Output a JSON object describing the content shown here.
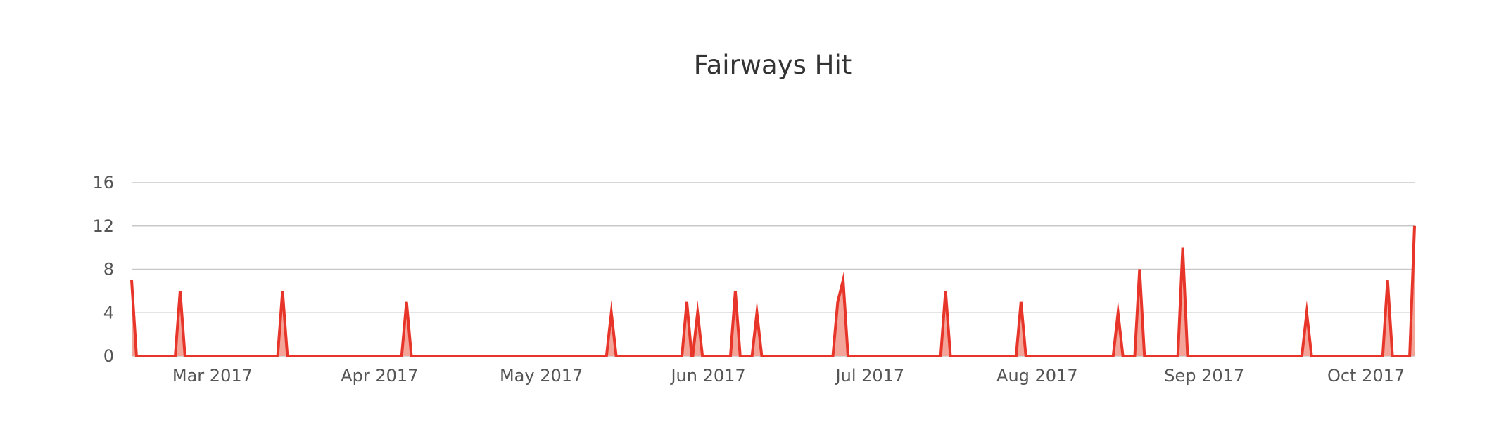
{
  "chart_data": {
    "type": "area",
    "title": "Fairways Hit",
    "xlabel": "",
    "ylabel": "",
    "ylim": [
      0,
      16
    ],
    "yticks": [
      0,
      4,
      8,
      12,
      16
    ],
    "xlim": [
      "2017-02-14",
      "2017-10-10"
    ],
    "xtick_labels": [
      {
        "date": "2017-03-01",
        "label": "Mar 2017"
      },
      {
        "date": "2017-04-01",
        "label": "Apr 2017"
      },
      {
        "date": "2017-05-01",
        "label": "May 2017"
      },
      {
        "date": "2017-06-01",
        "label": "Jun 2017"
      },
      {
        "date": "2017-07-01",
        "label": "Jul 2017"
      },
      {
        "date": "2017-08-01",
        "label": "Aug 2017"
      },
      {
        "date": "2017-09-01",
        "label": "Sep 2017"
      },
      {
        "date": "2017-10-01",
        "label": "Oct 2017"
      }
    ],
    "grid": true,
    "legend": "none",
    "line_color": "#e8352a",
    "fill_color": "#f4a59a",
    "points": [
      {
        "x": "2017-02-14",
        "y": 7
      },
      {
        "x": "2017-02-23",
        "y": 6
      },
      {
        "x": "2017-03-14",
        "y": 6
      },
      {
        "x": "2017-04-06",
        "y": 5
      },
      {
        "x": "2017-05-14",
        "y": 4
      },
      {
        "x": "2017-05-28",
        "y": 5
      },
      {
        "x": "2017-05-30",
        "y": 4
      },
      {
        "x": "2017-06-06",
        "y": 6
      },
      {
        "x": "2017-06-10",
        "y": 4
      },
      {
        "x": "2017-06-25",
        "y": 5
      },
      {
        "x": "2017-06-26",
        "y": 7
      },
      {
        "x": "2017-07-15",
        "y": 6
      },
      {
        "x": "2017-07-29",
        "y": 5
      },
      {
        "x": "2017-08-16",
        "y": 4
      },
      {
        "x": "2017-08-20",
        "y": 8
      },
      {
        "x": "2017-08-28",
        "y": 10
      },
      {
        "x": "2017-09-20",
        "y": 4
      },
      {
        "x": "2017-10-05",
        "y": 7
      },
      {
        "x": "2017-10-10",
        "y": 12
      }
    ]
  }
}
